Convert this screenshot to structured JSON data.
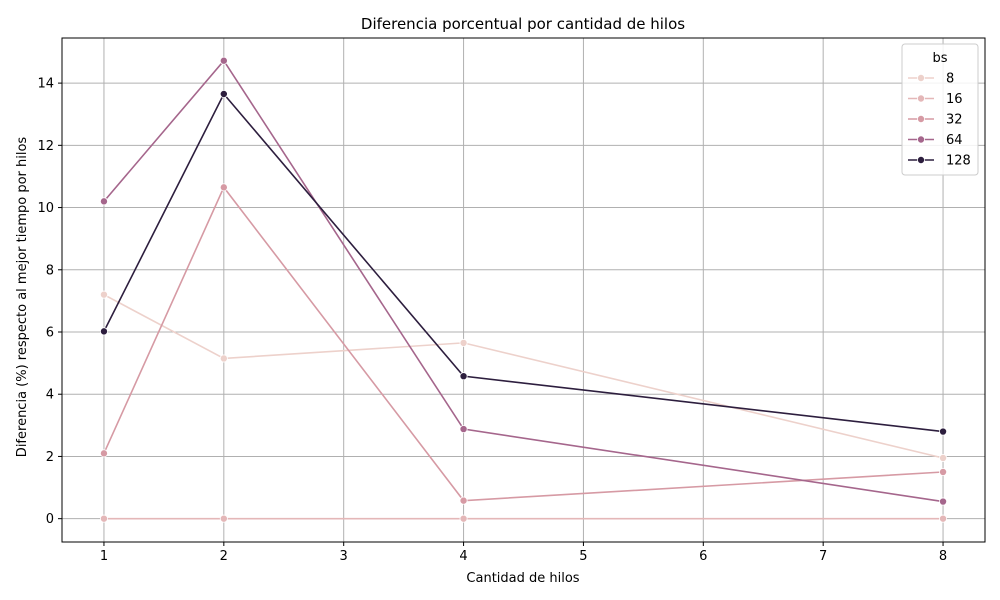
{
  "chart_data": {
    "type": "line",
    "title": "Diferencia porcentual por cantidad de hilos",
    "xlabel": "Cantidad de hilos",
    "ylabel": "Diferencia (%) respecto al mejor tiempo por hilos",
    "x": [
      1,
      2,
      4,
      8
    ],
    "xlim": [
      0.65,
      8.35
    ],
    "ylim": [
      -0.75,
      15.45
    ],
    "xticks": [
      "1",
      "2",
      "3",
      "4",
      "5",
      "6",
      "7",
      "8"
    ],
    "yticks": [
      "0",
      "2",
      "4",
      "6",
      "8",
      "10",
      "12",
      "14"
    ],
    "grid": true,
    "legend": {
      "title": "bs",
      "placement": "top-right"
    },
    "series": [
      {
        "name": "8",
        "color": "#edd1cb",
        "values": [
          7.2,
          5.15,
          5.65,
          1.95
        ]
      },
      {
        "name": "16",
        "color": "#e4b7b8",
        "values": [
          0.0,
          0.0,
          0.0,
          0.0
        ]
      },
      {
        "name": "32",
        "color": "#d69aa4",
        "values": [
          2.1,
          10.65,
          0.58,
          1.5
        ]
      },
      {
        "name": "64",
        "color": "#a5668c",
        "values": [
          10.2,
          14.72,
          2.88,
          0.55
        ]
      },
      {
        "name": "128",
        "color": "#2d1e3e",
        "values": [
          6.02,
          13.65,
          4.58,
          2.8
        ]
      }
    ]
  }
}
